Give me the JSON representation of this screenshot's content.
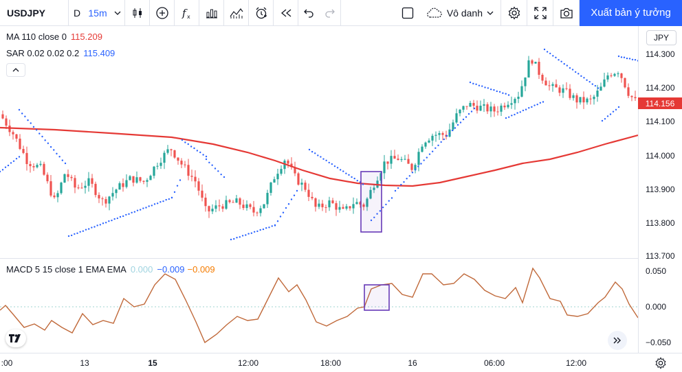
{
  "toolbar": {
    "symbol": "USDJPY",
    "interval_primary": "D",
    "interval_active": "15m",
    "layout_name": "Vô danh",
    "publish_label": "Xuất bản ý tưởng",
    "icons": [
      "candles-icon",
      "add-compare-icon",
      "indicators-fx-icon",
      "bar-templates-icon",
      "alerts-icon",
      "replay-icon",
      "undo-icon",
      "redo-icon",
      "fullscreen-toggle-icon",
      "cloud-save-icon",
      "settings-gear-icon",
      "fullscreen-icon",
      "camera-icon"
    ]
  },
  "legend": {
    "ma_label": "MA 110 close 0",
    "ma_value": "115.209",
    "sar_label": "SAR 0.02 0.02 0.2",
    "sar_value": "115.409",
    "macd_label": "MACD 5 15 close 1 EMA EMA",
    "macd_hist": "0.000",
    "macd_line": "−0.009",
    "macd_signal": "−0.009"
  },
  "price_axis": {
    "currency": "JPY",
    "labels": [
      "114.300",
      "114.200",
      "114.100",
      "114.000",
      "113.900",
      "113.800",
      "113.700"
    ],
    "last_price": "114.156"
  },
  "macd_axis": {
    "labels": [
      "0.050",
      "0.000",
      "−0.050"
    ]
  },
  "time_axis": {
    "labels": [
      ":00",
      "13",
      "15",
      "12:00",
      "18:00",
      "16",
      "06:00",
      "12:00"
    ]
  },
  "colors": {
    "up": "#26a69a",
    "down": "#ef5350",
    "ma": "#e53935",
    "sar": "#2962ff",
    "macd": "#c0693a",
    "highlight": "#673ab7",
    "accent": "#2962ff"
  }
}
